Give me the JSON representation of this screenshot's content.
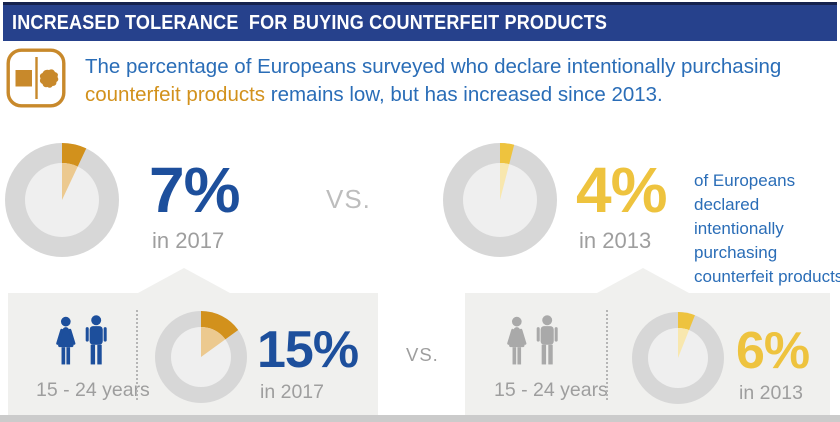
{
  "colors": {
    "header_bg": "#26418c",
    "header_edge": "#15224e",
    "title_text": "#ffffff",
    "body_blue": "#2a6db7",
    "icon_orange": "#c8892b",
    "accent_orange": "#d2911c",
    "accent_orange_light": "#ecc98f",
    "accent_yellow": "#eec33e",
    "accent_yellow_light": "#f8e7ae",
    "stat_blue": "#1d4f9c",
    "ring_gray": "#d7d7d7",
    "ring_inner": "#efefef",
    "panel_gray": "#f0f0ee",
    "muted_text": "#9e9e9e",
    "vs_text": "#bdbdbd",
    "person_gray": "#a9a9a9",
    "bottom_strip": "#cbcbcb"
  },
  "header": {
    "title": "INCREASED TOLERANCE  FOR BUYING COUNTERFEIT PRODUCTS"
  },
  "intro": {
    "line1": "The percentage of Europeans surveyed who declare intentionally purchasing",
    "highlight": "counterfeit products",
    "line2_rest": " remains low, but has increased since 2013."
  },
  "comparison": {
    "vs_top": "VS.",
    "vs_bottom": "VS.",
    "caption": "of Europeans\ndeclared intentionally\npurchasing\ncounterfeit products",
    "age_group_left": "15 - 24 years",
    "age_group_right": "15 - 24 years"
  },
  "chart_data": {
    "type": "pie",
    "title": "Increased tolerance for buying counterfeit products",
    "legend_position": "none",
    "donuts": [
      {
        "group": "all Europeans",
        "year": 2017,
        "value": 7,
        "display": "7%",
        "caption": "in 2017",
        "color_key": "orange"
      },
      {
        "group": "all Europeans",
        "year": 2013,
        "value": 4,
        "display": "4%",
        "caption": "in 2013",
        "color_key": "yellow"
      },
      {
        "group": "15 - 24 years",
        "year": 2017,
        "value": 15,
        "display": "15%",
        "caption": "in 2017",
        "color_key": "orange"
      },
      {
        "group": "15 - 24 years",
        "year": 2013,
        "value": 6,
        "display": "6%",
        "caption": "in 2013",
        "color_key": "yellow"
      }
    ]
  }
}
